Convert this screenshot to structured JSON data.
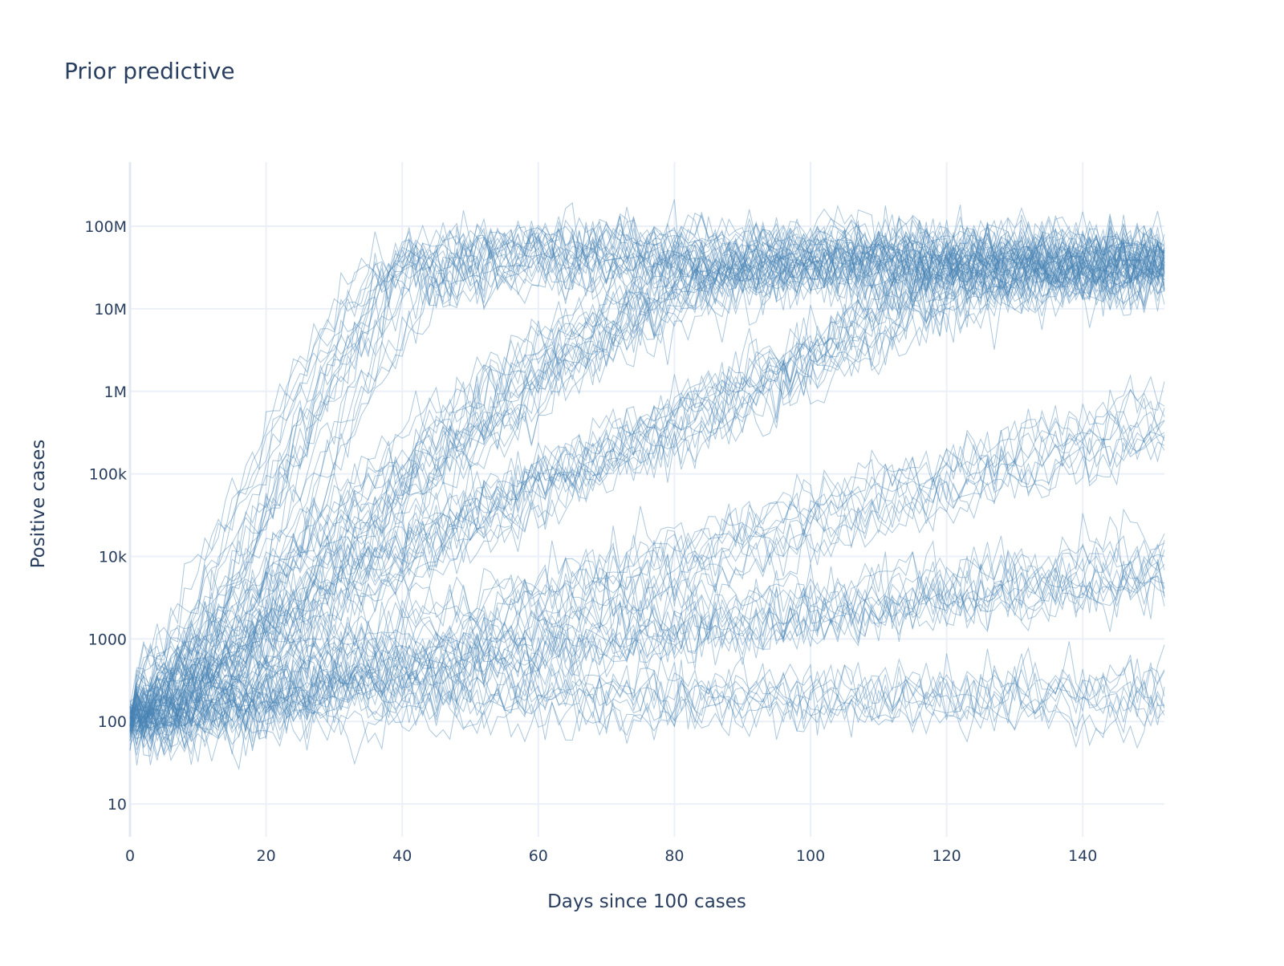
{
  "chart_data": {
    "type": "line",
    "title": "Prior predictive",
    "xlabel": "Days since 100 cases",
    "ylabel": "Positive cases",
    "x_scale": "linear",
    "y_scale": "log",
    "xlim": [
      0,
      152
    ],
    "ylim": [
      4,
      600000000
    ],
    "x_ticks": [
      0,
      20,
      40,
      60,
      80,
      100,
      120,
      140
    ],
    "y_ticks": [
      10,
      100,
      1000,
      10000,
      100000,
      1000000,
      10000000,
      100000000
    ],
    "x_tick_labels": [
      "0",
      "20",
      "40",
      "60",
      "80",
      "100",
      "120",
      "140"
    ],
    "y_tick_labels": [
      "10",
      "100",
      "1000",
      "10k",
      "100k",
      "1M",
      "10M",
      "100M"
    ],
    "grid": true,
    "legend": "none",
    "line_color": "#4682b4",
    "line_opacity": 0.45,
    "series_count": 100,
    "series_days": 153,
    "start_value": 100,
    "plateau_range": [
      10000000,
      100000000
    ],
    "mean_trajectories_by_family": [
      {
        "family": "fast",
        "points": [
          [
            0,
            100
          ],
          [
            10,
            700
          ],
          [
            20,
            30000
          ],
          [
            30,
            1500000
          ],
          [
            40,
            30000000
          ],
          [
            60,
            50000000
          ],
          [
            152,
            40000000
          ]
        ]
      },
      {
        "family": "medium",
        "points": [
          [
            0,
            100
          ],
          [
            20,
            3000
          ],
          [
            40,
            100000
          ],
          [
            60,
            2000000
          ],
          [
            80,
            20000000
          ],
          [
            100,
            40000000
          ],
          [
            152,
            40000000
          ]
        ]
      },
      {
        "family": "slow",
        "points": [
          [
            0,
            100
          ],
          [
            20,
            500
          ],
          [
            40,
            8000
          ],
          [
            60,
            60000
          ],
          [
            80,
            300000
          ],
          [
            100,
            2000000
          ],
          [
            120,
            15000000
          ],
          [
            152,
            30000000
          ]
        ]
      },
      {
        "family": "very-slow",
        "points": [
          [
            0,
            100
          ],
          [
            40,
            800
          ],
          [
            80,
            8000
          ],
          [
            120,
            80000
          ],
          [
            152,
            400000
          ]
        ]
      },
      {
        "family": "flat",
        "points": [
          [
            0,
            100
          ],
          [
            40,
            500
          ],
          [
            80,
            1500
          ],
          [
            120,
            4000
          ],
          [
            152,
            8000
          ]
        ]
      },
      {
        "family": "stagnant",
        "points": [
          [
            0,
            100
          ],
          [
            40,
            200
          ],
          [
            80,
            200
          ],
          [
            152,
            200
          ]
        ]
      }
    ]
  }
}
